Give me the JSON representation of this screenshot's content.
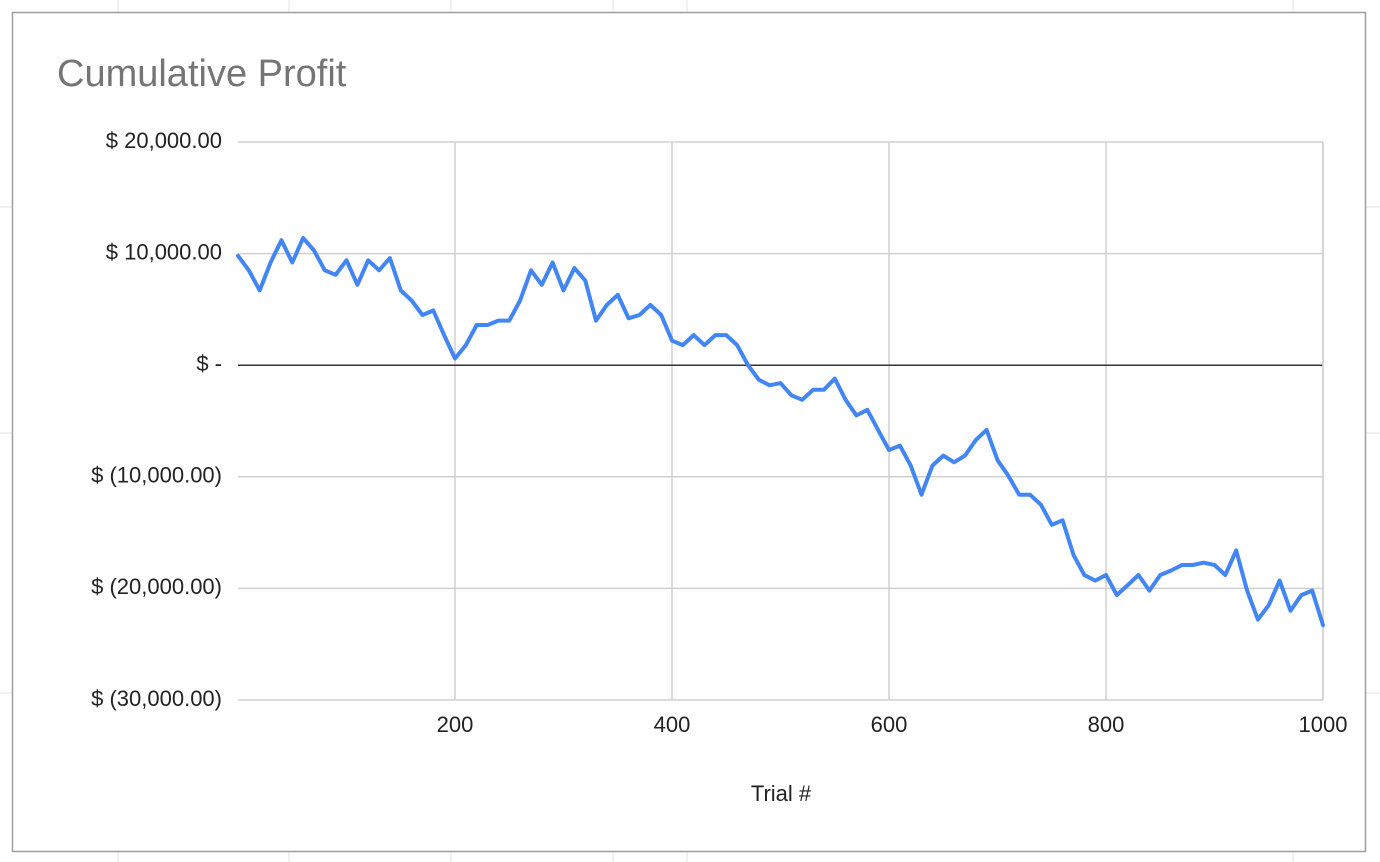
{
  "chart_data": {
    "type": "line",
    "title": "Cumulative Profit",
    "x_label": "Trial #",
    "xlim": [
      0,
      1000
    ],
    "xticks": [
      200,
      400,
      600,
      800,
      1000
    ],
    "ylim": [
      -30000,
      20000
    ],
    "yticks": [
      {
        "value": -30000,
        "label": "$ (30,000.00)"
      },
      {
        "value": -20000,
        "label": "$ (20,000.00)"
      },
      {
        "value": -10000,
        "label": "$ (10,000.00)"
      },
      {
        "value": 0,
        "label": "$ -"
      },
      {
        "value": 10000,
        "label": "$ 10,000.00"
      },
      {
        "value": 20000,
        "label": "$ 20,000.00"
      }
    ],
    "grid": true,
    "x": [
      0,
      10,
      20,
      30,
      40,
      50,
      60,
      70,
      80,
      90,
      100,
      110,
      120,
      130,
      140,
      150,
      160,
      170,
      180,
      190,
      200,
      210,
      220,
      230,
      240,
      250,
      260,
      270,
      280,
      290,
      300,
      310,
      320,
      330,
      340,
      350,
      360,
      370,
      380,
      390,
      400,
      410,
      420,
      430,
      440,
      450,
      460,
      470,
      480,
      490,
      500,
      510,
      520,
      530,
      540,
      550,
      560,
      570,
      580,
      590,
      600,
      610,
      620,
      630,
      640,
      650,
      660,
      670,
      680,
      690,
      700,
      710,
      720,
      730,
      740,
      750,
      760,
      770,
      780,
      790,
      800,
      810,
      820,
      830,
      840,
      850,
      860,
      870,
      880,
      890,
      900,
      910,
      920,
      930,
      940,
      950,
      960,
      970,
      980,
      990,
      1000
    ],
    "series": [
      {
        "color": "#4285f4",
        "values": [
          9800,
          8500,
          6700,
          9200,
          11200,
          9200,
          11400,
          10300,
          8500,
          8100,
          9400,
          7200,
          9400,
          8500,
          9600,
          6700,
          5800,
          4500,
          4900,
          2700,
          600,
          1800,
          3600,
          3600,
          4000,
          4000,
          5800,
          8500,
          7200,
          9200,
          6700,
          8700,
          7600,
          4000,
          5400,
          6300,
          4200,
          4500,
          5400,
          4500,
          2200,
          1800,
          2700,
          1800,
          2700,
          2700,
          1800,
          0,
          -1300,
          -1800,
          -1600,
          -2700,
          -3100,
          -2200,
          -2200,
          -1200,
          -3100,
          -4500,
          -4000,
          -5800,
          -7600,
          -7200,
          -9000,
          -11600,
          -9000,
          -8100,
          -8700,
          -8100,
          -6700,
          -5800,
          -8500,
          -9900,
          -11600,
          -11600,
          -12500,
          -14300,
          -13900,
          -17000,
          -18800,
          -19300,
          -18800,
          -20600,
          -19700,
          -18800,
          -20200,
          -18800,
          -18400,
          -17900,
          -17900,
          -17700,
          -17900,
          -18800,
          -16600,
          -20200,
          -22800,
          -21500,
          -19300,
          -22000,
          -20600,
          -20200,
          -23300
        ]
      }
    ]
  }
}
